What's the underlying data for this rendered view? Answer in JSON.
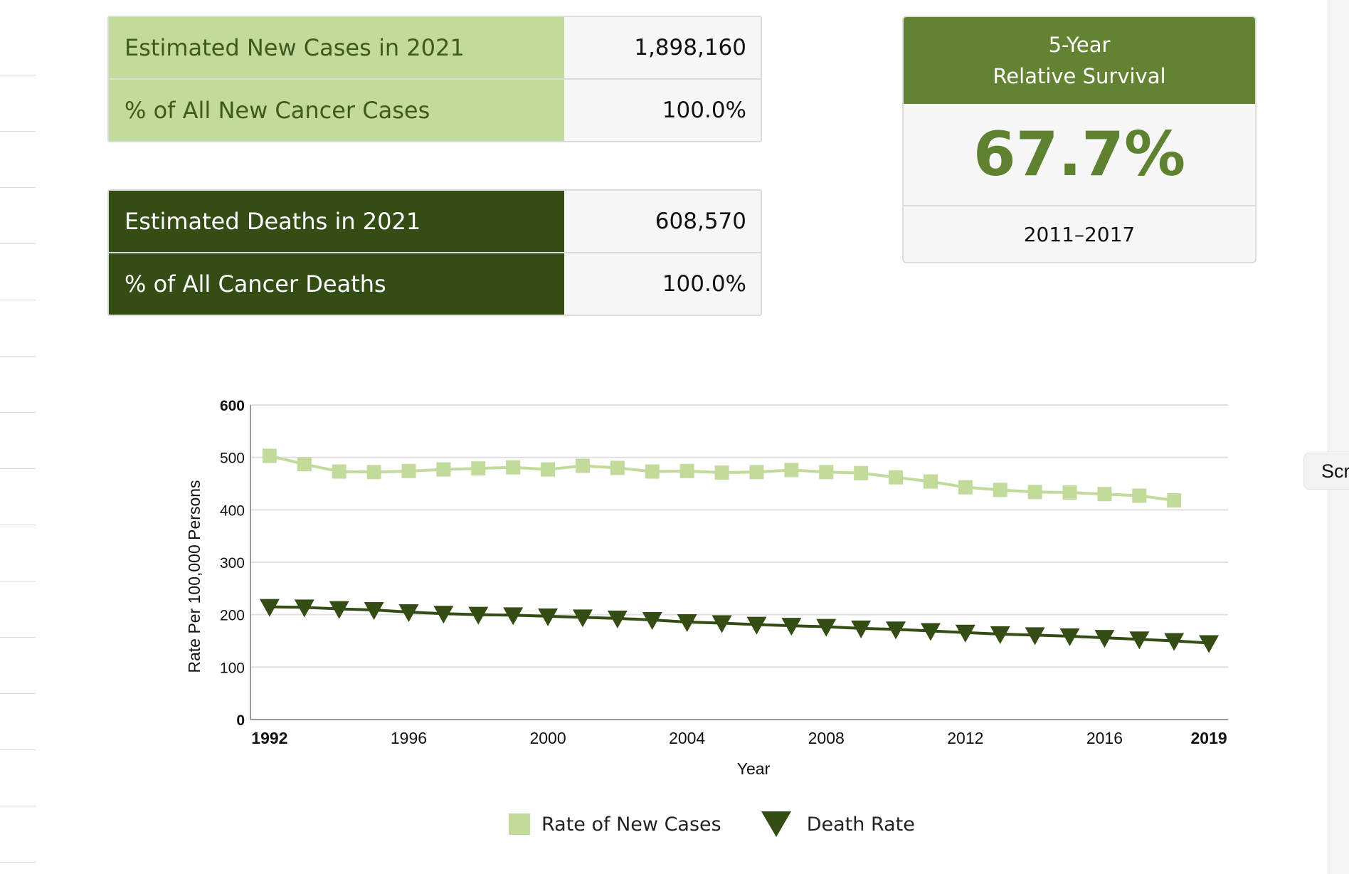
{
  "new_cases_table": {
    "rows": [
      {
        "label": "Estimated New Cases in 2021",
        "value": "1,898,160"
      },
      {
        "label": "% of All New Cancer Cases",
        "value": "100.0%"
      }
    ]
  },
  "deaths_table": {
    "rows": [
      {
        "label": "Estimated Deaths in 2021",
        "value": "608,570"
      },
      {
        "label": "% of All Cancer Deaths",
        "value": "100.0%"
      }
    ]
  },
  "survival": {
    "title_line1": "5-Year",
    "title_line2": "Relative Survival",
    "value": "67.7%",
    "range": "2011–2017"
  },
  "side_tab": {
    "label": "Scr"
  },
  "colors": {
    "light_green": "#c2da9a",
    "dark_green": "#344d14",
    "mid_green": "#648332"
  },
  "chart_data": {
    "type": "line",
    "xlabel": "Year",
    "ylabel": "Rate Per 100,000 Persons",
    "ylim": [
      0,
      600
    ],
    "xlim": [
      1992,
      2019
    ],
    "yticks": [
      0,
      100,
      200,
      300,
      400,
      500,
      600
    ],
    "xticks": [
      1992,
      1996,
      2000,
      2004,
      2008,
      2012,
      2016,
      2019
    ],
    "grid": true,
    "legend_position": "bottom",
    "series": [
      {
        "name": "Rate of New Cases",
        "marker": "square",
        "color": "#c2da9a",
        "x": [
          1992,
          1993,
          1994,
          1995,
          1996,
          1997,
          1998,
          1999,
          2000,
          2001,
          2002,
          2003,
          2004,
          2005,
          2006,
          2007,
          2008,
          2009,
          2010,
          2011,
          2012,
          2013,
          2014,
          2015,
          2016,
          2017,
          2018
        ],
        "values": [
          503,
          487,
          473,
          472,
          474,
          477,
          479,
          481,
          477,
          484,
          480,
          473,
          474,
          471,
          472,
          476,
          472,
          470,
          462,
          454,
          443,
          438,
          434,
          433,
          430,
          427,
          418
        ]
      },
      {
        "name": "Death Rate",
        "marker": "triangle-down",
        "color": "#344d14",
        "x": [
          1992,
          1993,
          1994,
          1995,
          1996,
          1997,
          1998,
          1999,
          2000,
          2001,
          2002,
          2003,
          2004,
          2005,
          2006,
          2007,
          2008,
          2009,
          2010,
          2011,
          2012,
          2013,
          2014,
          2015,
          2016,
          2017,
          2018,
          2019
        ],
        "values": [
          215,
          214,
          211,
          209,
          205,
          202,
          200,
          199,
          197,
          195,
          193,
          190,
          186,
          184,
          181,
          179,
          177,
          174,
          172,
          169,
          166,
          163,
          161,
          159,
          156,
          153,
          150,
          146
        ]
      }
    ]
  }
}
